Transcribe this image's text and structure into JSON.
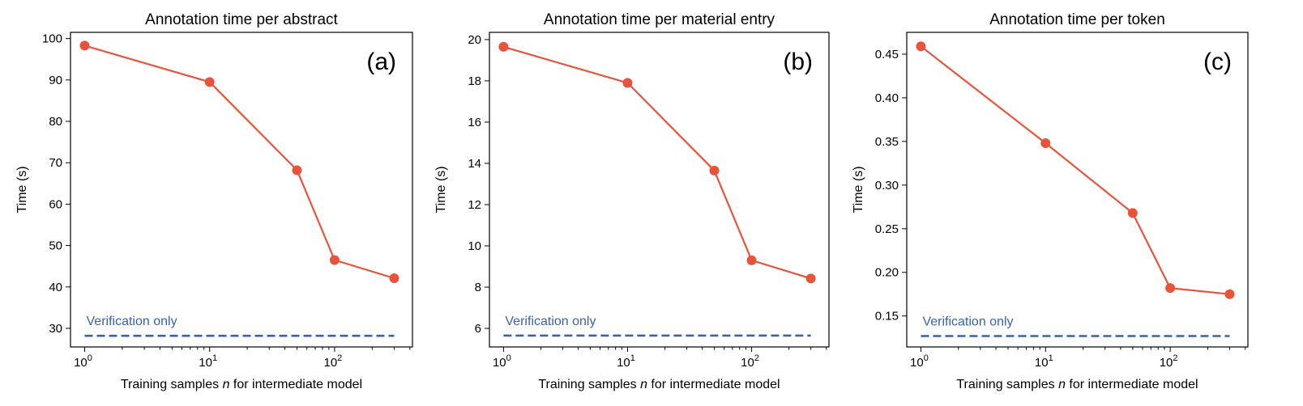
{
  "styles": {
    "series_color": "#e8543b",
    "reference_color": "#3a62aa"
  },
  "chart_data": [
    {
      "type": "line",
      "panel_tag": "(a)",
      "title": "Annotation time per abstract",
      "xlabel_parts": [
        "Training samples ",
        "n",
        " for intermediate model"
      ],
      "ylabel": "Time (s)",
      "xscale": "log",
      "xlim": [
        0.77,
        420
      ],
      "ylim": [
        25.5,
        101.5
      ],
      "xticks": [
        {
          "base": "10",
          "exp": "0",
          "value": 1
        },
        {
          "base": "10",
          "exp": "1",
          "value": 10
        },
        {
          "base": "10",
          "exp": "2",
          "value": 100
        }
      ],
      "yticks": [
        {
          "label": "30",
          "value": 30
        },
        {
          "label": "40",
          "value": 40
        },
        {
          "label": "50",
          "value": 50
        },
        {
          "label": "60",
          "value": 60
        },
        {
          "label": "70",
          "value": 70
        },
        {
          "label": "80",
          "value": 80
        },
        {
          "label": "90",
          "value": 90
        },
        {
          "label": "100",
          "value": 100
        }
      ],
      "x": [
        1,
        10,
        50,
        100,
        300
      ],
      "y": [
        98.3,
        89.5,
        68.2,
        46.5,
        42.1
      ],
      "reference": {
        "label": "Verification only",
        "value": 28.2
      }
    },
    {
      "type": "line",
      "panel_tag": "(b)",
      "title": "Annotation time per material entry",
      "xlabel_parts": [
        "Training samples ",
        "n",
        " for intermediate model"
      ],
      "ylabel": "Time (s)",
      "xscale": "log",
      "xlim": [
        0.77,
        420
      ],
      "ylim": [
        5.1,
        20.35
      ],
      "xticks": [
        {
          "base": "10",
          "exp": "0",
          "value": 1
        },
        {
          "base": "10",
          "exp": "1",
          "value": 10
        },
        {
          "base": "10",
          "exp": "2",
          "value": 100
        }
      ],
      "yticks": [
        {
          "label": "6",
          "value": 6
        },
        {
          "label": "8",
          "value": 8
        },
        {
          "label": "10",
          "value": 10
        },
        {
          "label": "12",
          "value": 12
        },
        {
          "label": "14",
          "value": 14
        },
        {
          "label": "16",
          "value": 16
        },
        {
          "label": "18",
          "value": 18
        },
        {
          "label": "20",
          "value": 20
        }
      ],
      "x": [
        1,
        10,
        50,
        100,
        300
      ],
      "y": [
        19.65,
        17.9,
        13.65,
        9.3,
        8.42
      ],
      "reference": {
        "label": "Verification only",
        "value": 5.65
      }
    },
    {
      "type": "line",
      "panel_tag": "(c)",
      "title": "Annotation time per token",
      "xlabel_parts": [
        "Training samples ",
        "n",
        " for intermediate model"
      ],
      "ylabel": "Time (s)",
      "xscale": "log",
      "xlim": [
        0.77,
        420
      ],
      "ylim": [
        0.1145,
        0.475
      ],
      "xticks": [
        {
          "base": "10",
          "exp": "0",
          "value": 1
        },
        {
          "base": "10",
          "exp": "1",
          "value": 10
        },
        {
          "base": "10",
          "exp": "2",
          "value": 100
        }
      ],
      "yticks": [
        {
          "label": "0.15",
          "value": 0.15
        },
        {
          "label": "0.20",
          "value": 0.2
        },
        {
          "label": "0.25",
          "value": 0.25
        },
        {
          "label": "0.30",
          "value": 0.3
        },
        {
          "label": "0.35",
          "value": 0.35
        },
        {
          "label": "0.40",
          "value": 0.4
        },
        {
          "label": "0.45",
          "value": 0.45
        }
      ],
      "x": [
        1,
        10,
        50,
        100,
        300
      ],
      "y": [
        0.459,
        0.348,
        0.268,
        0.182,
        0.175
      ],
      "reference": {
        "label": "Verification only",
        "value": 0.127
      }
    }
  ]
}
